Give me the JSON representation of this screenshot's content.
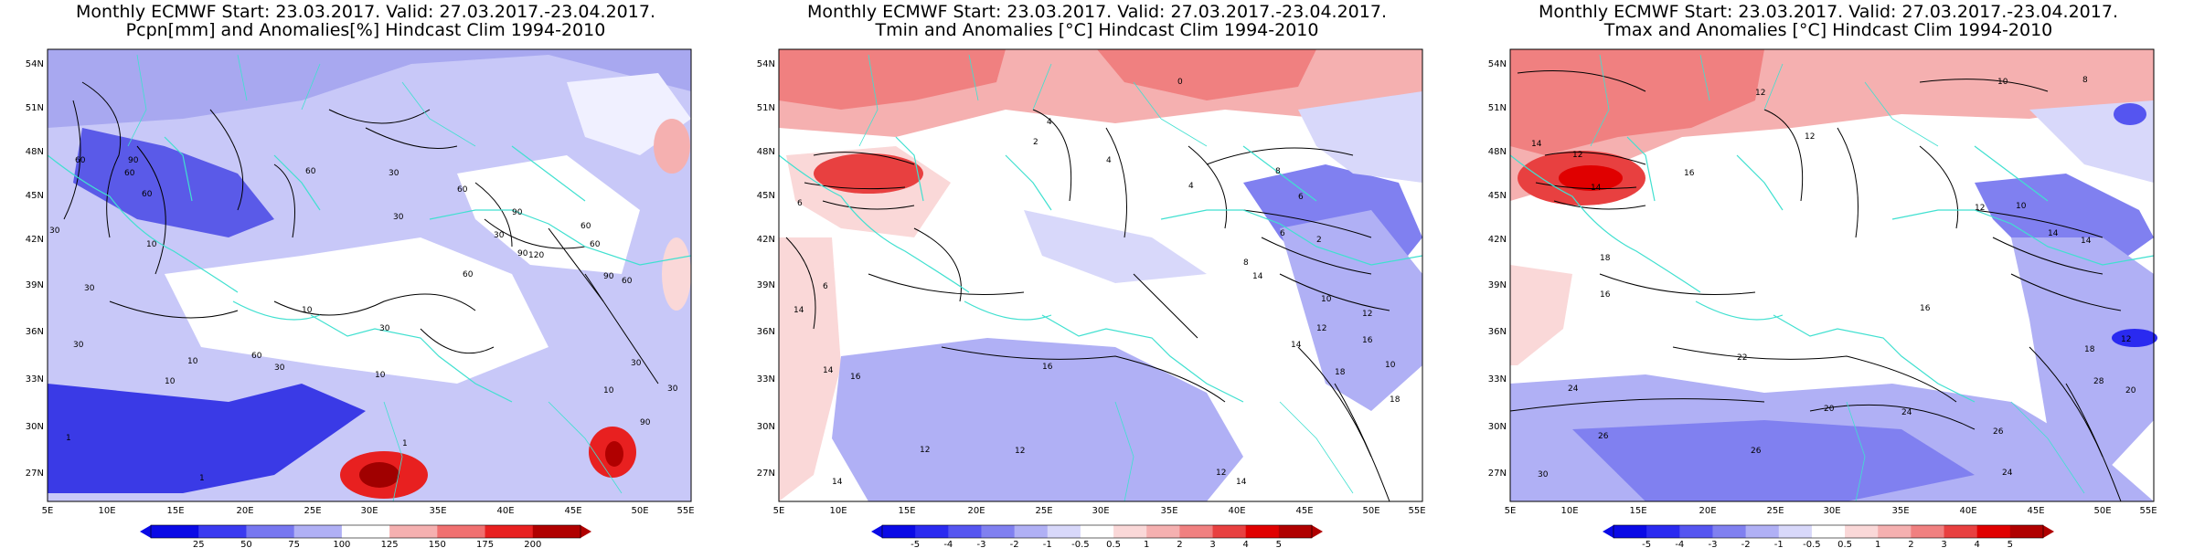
{
  "panels": [
    {
      "title_line1": "Monthly ECMWF Start: 23.03.2017. Valid: 27.03.2017.-23.04.2017.",
      "title_line2": "Pcpn[mm] and Anomalies[%] Hindcast Clim 1994-2010",
      "lat_labels": [
        "54N",
        "51N",
        "48N",
        "45N",
        "42N",
        "39N",
        "36N",
        "33N",
        "30N",
        "27N"
      ],
      "lon_labels": [
        "5E",
        "10E",
        "15E",
        "20E",
        "25E",
        "30E",
        "35E",
        "40E",
        "45E",
        "50E",
        "55E"
      ],
      "colorbar_labels": [
        "25",
        "50",
        "75",
        "100",
        "125",
        "150",
        "175",
        "200"
      ],
      "colorbar_colors": [
        "#0a0ae6",
        "#3a3af0",
        "#7777f0",
        "#b0b0f5",
        "#ffffff",
        "#f5b0b0",
        "#f07070",
        "#e82020",
        "#b00000"
      ],
      "contour_labels": [
        "90",
        "60",
        "30",
        "60",
        "30",
        "60",
        "30",
        "60",
        "90",
        "30",
        "10",
        "60",
        "90",
        "120",
        "30",
        "90",
        "60",
        "30",
        "10",
        "10",
        "30",
        "10",
        "1",
        "60",
        "30",
        "60",
        "10",
        "1",
        "60",
        "90",
        "30",
        "60",
        "30",
        "10",
        "1"
      ]
    },
    {
      "title_line1": "Monthly ECMWF Start: 23.03.2017. Valid: 27.03.2017.-23.04.2017.",
      "title_line2": "Tmin and Anomalies [°C] Hindcast Clim 1994-2010",
      "lat_labels": [
        "54N",
        "51N",
        "48N",
        "45N",
        "42N",
        "39N",
        "36N",
        "33N",
        "30N",
        "27N"
      ],
      "lon_labels": [
        "5E",
        "10E",
        "15E",
        "20E",
        "25E",
        "30E",
        "35E",
        "40E",
        "45E",
        "50E",
        "55E"
      ],
      "colorbar_labels": [
        "-5",
        "-4",
        "-3",
        "-2",
        "-1",
        "-0.5",
        "0.5",
        "1",
        "2",
        "3",
        "4",
        "5"
      ],
      "colorbar_colors": [
        "#0a0ae6",
        "#2a2af0",
        "#5555f0",
        "#8080f0",
        "#b0b0f5",
        "#d8d8fa",
        "#ffffff",
        "#fad8d8",
        "#f5b0b0",
        "#f08080",
        "#e84040",
        "#e00000",
        "#b00000"
      ],
      "contour_labels": [
        "0",
        "4",
        "2",
        "6",
        "4",
        "8",
        "6",
        "4",
        "2",
        "6",
        "8",
        "10",
        "14",
        "12",
        "6",
        "16",
        "14",
        "12",
        "16",
        "12",
        "14",
        "18",
        "10",
        "14",
        "12",
        "12",
        "18",
        "14",
        "16",
        "14"
      ]
    },
    {
      "title_line1": "Monthly ECMWF Start: 23.03.2017. Valid: 27.03.2017.-23.04.2017.",
      "title_line2": "Tmax and Anomalies [°C] Hindcast Clim 1994-2010",
      "lat_labels": [
        "54N",
        "51N",
        "48N",
        "45N",
        "42N",
        "39N",
        "36N",
        "33N",
        "30N",
        "27N"
      ],
      "lon_labels": [
        "5E",
        "10E",
        "15E",
        "20E",
        "25E",
        "30E",
        "35E",
        "40E",
        "45E",
        "50E",
        "55E"
      ],
      "colorbar_labels": [
        "-5",
        "-4",
        "-3",
        "-2",
        "-1",
        "-0.5",
        "0.5",
        "1",
        "2",
        "3",
        "4",
        "5"
      ],
      "colorbar_colors": [
        "#0a0ae6",
        "#2a2af0",
        "#5555f0",
        "#8080f0",
        "#b0b0f5",
        "#d8d8fa",
        "#ffffff",
        "#fad8d8",
        "#f5b0b0",
        "#f08080",
        "#e84040",
        "#e00000",
        "#b00000"
      ],
      "contour_labels": [
        "12",
        "10",
        "8",
        "14",
        "12",
        "16",
        "14",
        "12",
        "18",
        "16",
        "14",
        "10",
        "12",
        "14",
        "20",
        "18",
        "16",
        "22",
        "24",
        "26",
        "28",
        "24",
        "20",
        "26",
        "30",
        "24",
        "26",
        "12"
      ]
    }
  ]
}
